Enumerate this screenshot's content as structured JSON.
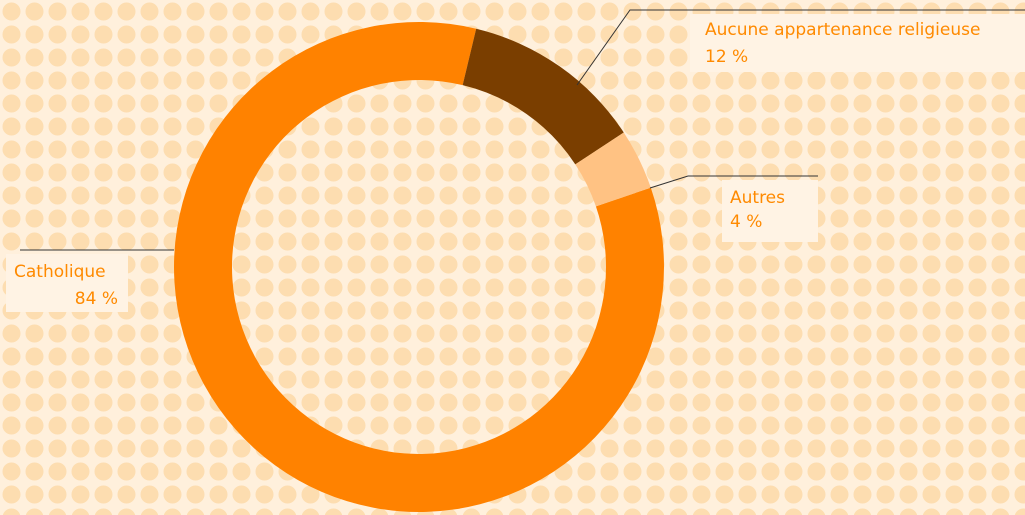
{
  "chart_data": {
    "type": "donut",
    "categories": [
      "Catholique",
      "Aucune appartenance religieuse",
      "Autres"
    ],
    "values": [
      84,
      12,
      4
    ],
    "value_labels": [
      "84 %",
      "12 %",
      "4 %"
    ],
    "colors": [
      "#ff8200",
      "#7a3e00",
      "#ffc283"
    ]
  }
}
